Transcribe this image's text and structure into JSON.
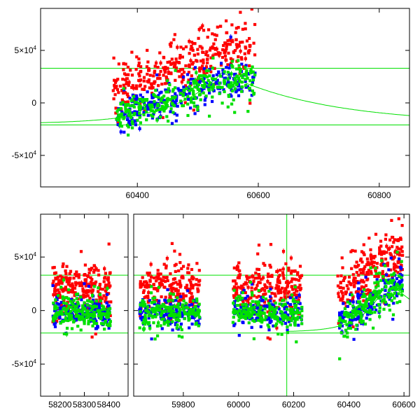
{
  "chart_data": [
    {
      "type": "scatter",
      "xlim": [
        60240,
        60850
      ],
      "ylim": [
        -80000,
        90000
      ],
      "x_ticks": [
        60400,
        60600,
        60800
      ],
      "y_ticks": [
        {
          "value": 50000,
          "label": "5×10",
          "exp": "4"
        },
        {
          "value": 0,
          "label": "0",
          "exp": ""
        },
        {
          "value": -50000,
          "label": "-5×10",
          "exp": "4"
        }
      ],
      "hlines": [
        {
          "y": 33000,
          "color": "#00e000"
        },
        {
          "y": -21000,
          "color": "#00e000"
        }
      ],
      "model_curve": {
        "color": "#00e000",
        "peak_x": 60540,
        "peak_y": 29000,
        "baseline": -20000,
        "rise_tau": 80,
        "decay_tau": 170
      },
      "series": [
        {
          "color": "#ff0000",
          "segments": [
            {
              "x_start": 60360,
              "x_end": 60595,
              "y_start": 15000,
              "y_end": 55000,
              "peak_x": 60545,
              "peak_y": 60000,
              "spread": 12000,
              "count": 360
            }
          ]
        },
        {
          "color": "#0000ff",
          "segments": [
            {
              "x_start": 60365,
              "x_end": 60595,
              "y_start": -12000,
              "y_end": 22000,
              "peak_x": 60545,
              "peak_y": 32000,
              "spread": 8000,
              "count": 260
            }
          ]
        },
        {
          "color": "#00e000",
          "segments": [
            {
              "x_start": 60365,
              "x_end": 60595,
              "y_start": -12000,
              "y_end": 22000,
              "peak_x": 60545,
              "peak_y": 32000,
              "spread": 8000,
              "count": 300
            }
          ]
        }
      ]
    },
    {
      "type": "scatter",
      "panels": [
        {
          "xlim": [
            58120,
            58480
          ],
          "x_ticks": [
            58200,
            58300,
            58400
          ]
        },
        {
          "xlim": [
            59620,
            60620
          ],
          "x_ticks": [
            59800,
            60000,
            60200,
            60400,
            60600
          ]
        }
      ],
      "ylim": [
        -80000,
        90000
      ],
      "y_ticks": [
        {
          "value": 50000,
          "label": "5×10",
          "exp": "4"
        },
        {
          "value": 0,
          "label": "0",
          "exp": ""
        },
        {
          "value": -50000,
          "label": "-5×10",
          "exp": "4"
        }
      ],
      "hlines": [
        {
          "y": 33000,
          "color": "#00e000"
        },
        {
          "y": -21000,
          "color": "#00e000"
        }
      ],
      "vline": {
        "x": 60175,
        "color": "#00e000"
      },
      "model_curve": {
        "color": "#00e000",
        "peak_x": 60540,
        "peak_y": 29000,
        "baseline": -20000,
        "rise_tau": 80,
        "decay_tau": 170
      },
      "series": [
        {
          "color": "#ff0000",
          "segments": [
            {
              "x_start": 58170,
              "x_end": 58410,
              "y_start": 20000,
              "y_end": 20000,
              "peak_x": 58300,
              "peak_y": 22000,
              "spread": 11000,
              "count": 240
            },
            {
              "x_start": 59640,
              "x_end": 59860,
              "y_start": 20000,
              "y_end": 20000,
              "peak_x": 59750,
              "peak_y": 22000,
              "spread": 11000,
              "count": 220
            },
            {
              "x_start": 59980,
              "x_end": 60230,
              "y_start": 20000,
              "y_end": 20000,
              "peak_x": 60100,
              "peak_y": 22000,
              "spread": 11000,
              "count": 240
            },
            {
              "x_start": 60360,
              "x_end": 60595,
              "y_start": 15000,
              "y_end": 55000,
              "peak_x": 60545,
              "peak_y": 60000,
              "spread": 12000,
              "count": 240
            }
          ]
        },
        {
          "color": "#0000ff",
          "segments": [
            {
              "x_start": 58170,
              "x_end": 58410,
              "y_start": -2000,
              "y_end": -2000,
              "peak_x": 58300,
              "peak_y": -2000,
              "spread": 7000,
              "count": 160
            },
            {
              "x_start": 59640,
              "x_end": 59860,
              "y_start": -2000,
              "y_end": -2000,
              "peak_x": 59750,
              "peak_y": -2000,
              "spread": 7000,
              "count": 150
            },
            {
              "x_start": 59980,
              "x_end": 60230,
              "y_start": -2000,
              "y_end": -2000,
              "peak_x": 60100,
              "peak_y": -2000,
              "spread": 7000,
              "count": 160
            },
            {
              "x_start": 60365,
              "x_end": 60595,
              "y_start": -12000,
              "y_end": 22000,
              "peak_x": 60545,
              "peak_y": 32000,
              "spread": 8000,
              "count": 170
            }
          ]
        },
        {
          "color": "#00e000",
          "segments": [
            {
              "x_start": 58170,
              "x_end": 58410,
              "y_start": -2000,
              "y_end": -2000,
              "peak_x": 58300,
              "peak_y": -2000,
              "spread": 7000,
              "count": 200
            },
            {
              "x_start": 59640,
              "x_end": 59860,
              "y_start": -2000,
              "y_end": -2000,
              "peak_x": 59750,
              "peak_y": -2000,
              "spread": 7000,
              "count": 190
            },
            {
              "x_start": 59980,
              "x_end": 60230,
              "y_start": -2000,
              "y_end": -2000,
              "peak_x": 60100,
              "peak_y": -2000,
              "spread": 7000,
              "count": 200
            },
            {
              "x_start": 60365,
              "x_end": 60595,
              "y_start": -12000,
              "y_end": 22000,
              "peak_x": 60545,
              "peak_y": 32000,
              "spread": 8000,
              "count": 200
            }
          ]
        }
      ]
    }
  ]
}
